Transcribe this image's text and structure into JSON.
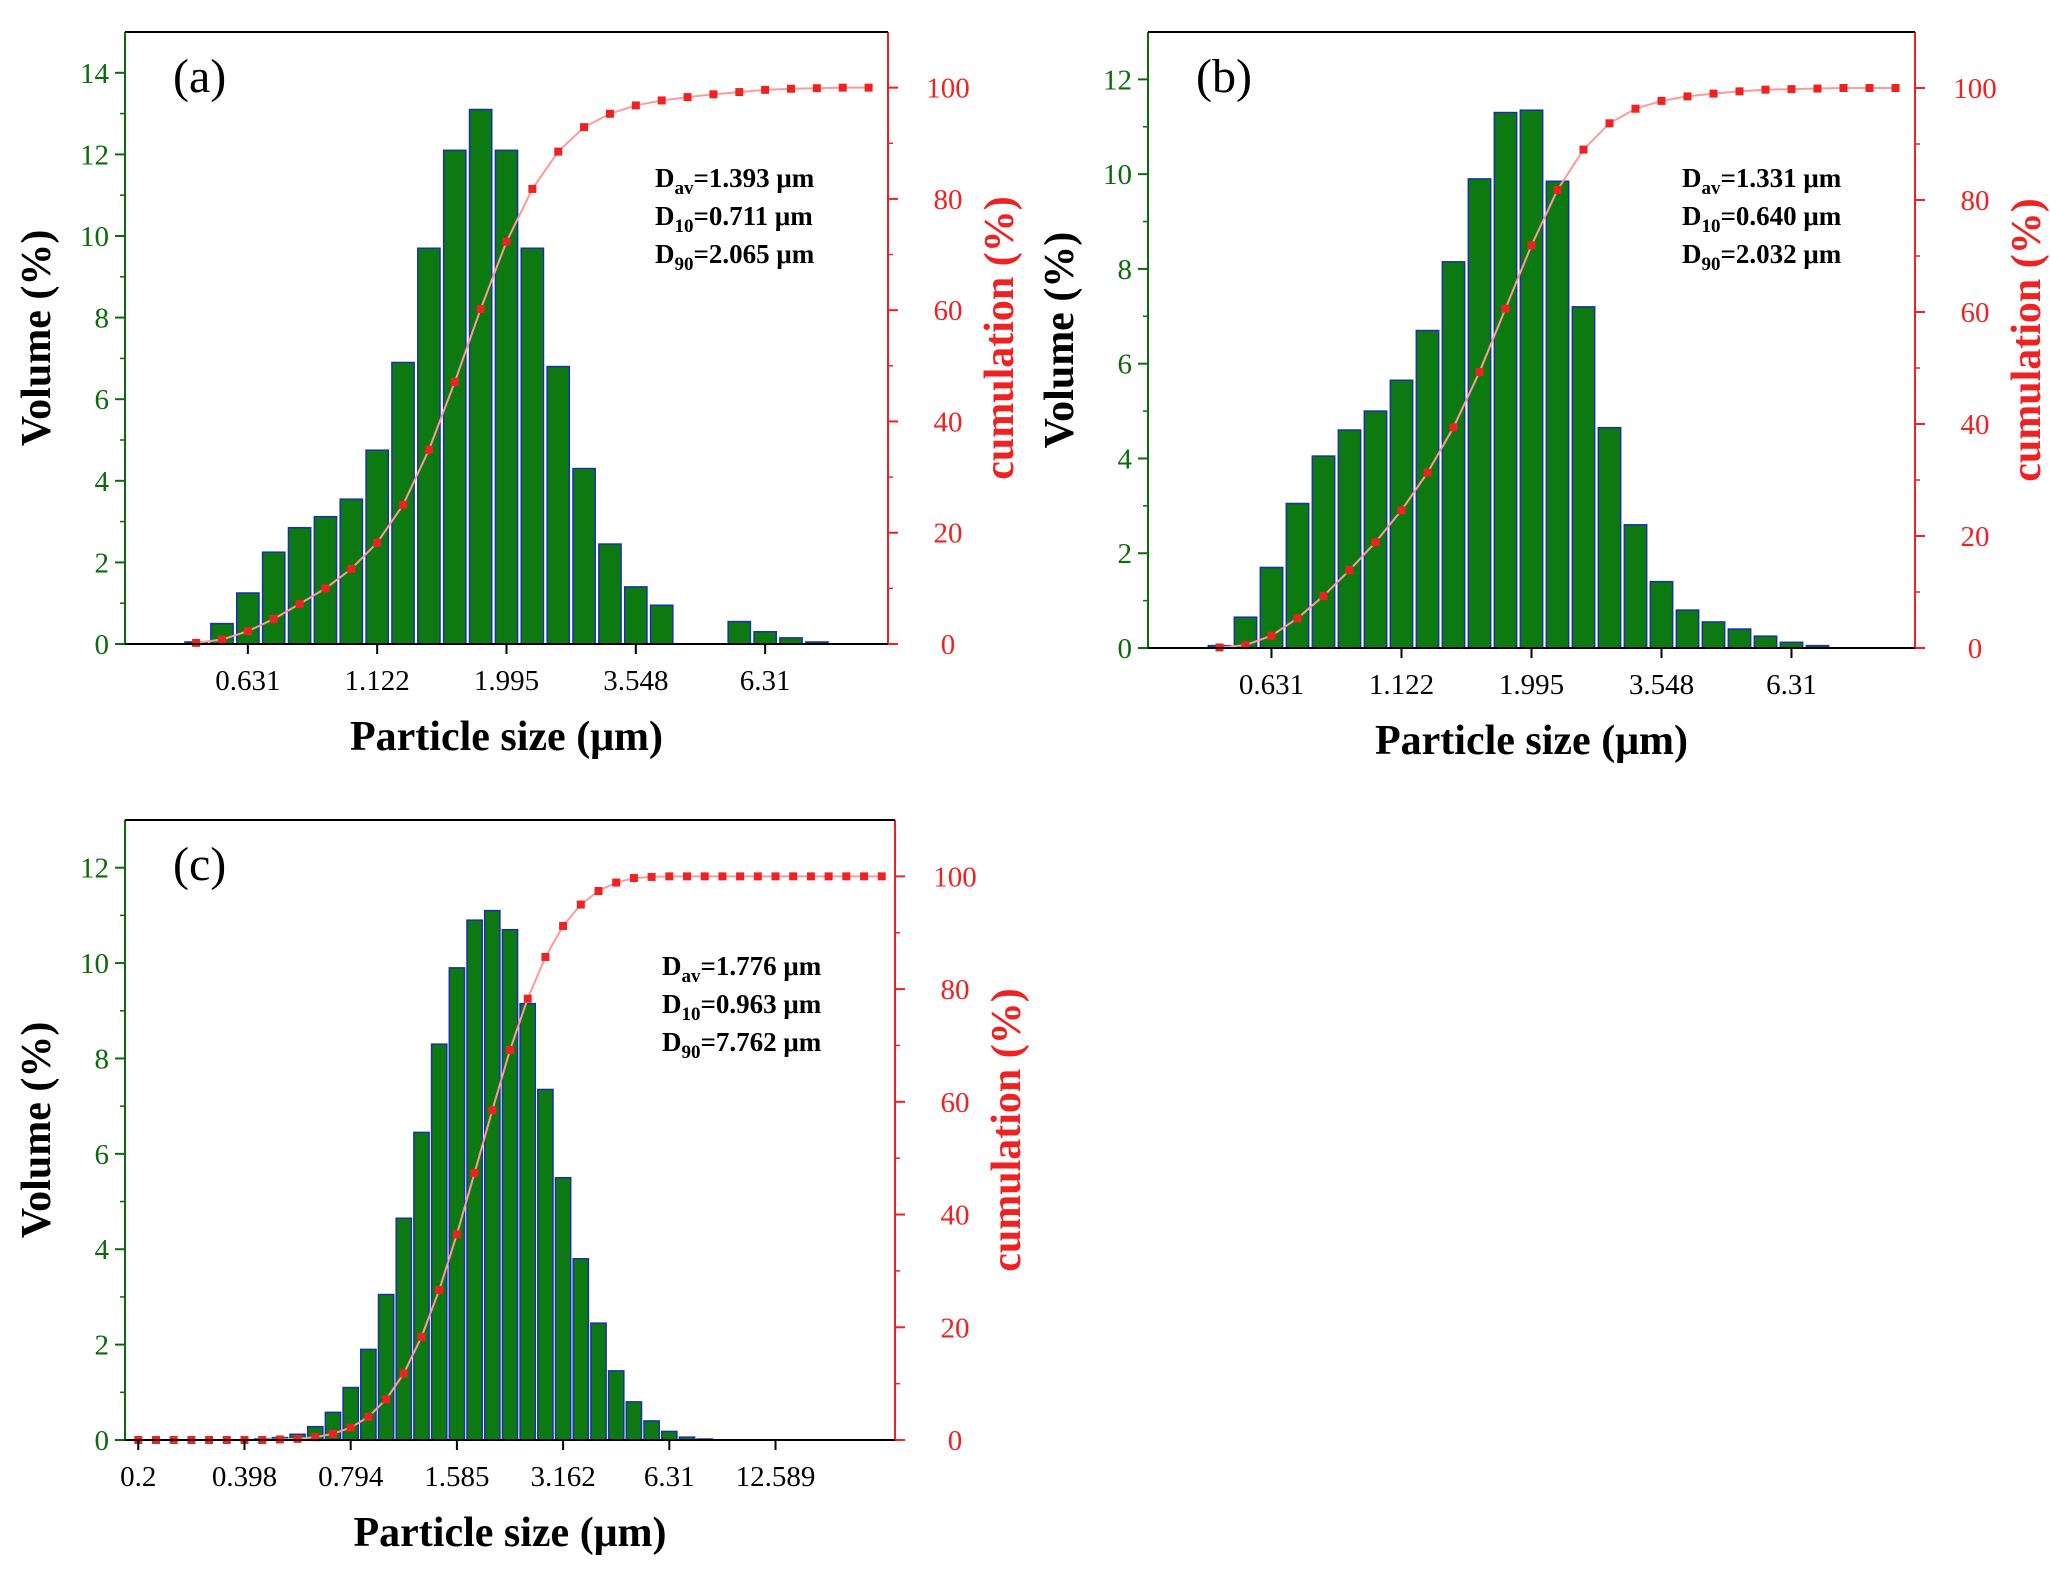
{
  "colors": {
    "bar_fill": "#0c7a10",
    "bar_stroke": "#1a2fae",
    "left_axis_text": "#0b6b0b",
    "cumulative": "#ee2222",
    "cumulative_line": "#ff9a9a"
  },
  "chart_data": [
    {
      "type": "bar",
      "panel": "(a)",
      "xlabel": "Particle size (μm)",
      "ylabel": "Volume (%)",
      "ylabel_right": "cumulation (%)",
      "ylim": [
        0,
        15
      ],
      "ylim_right": [
        0,
        110
      ],
      "yticks": [
        0,
        2,
        4,
        6,
        8,
        10,
        12,
        14
      ],
      "yticks_right": [
        0,
        20,
        40,
        60,
        80,
        100
      ],
      "xticks": [
        {
          "label": "0.631",
          "bin": 4.5
        },
        {
          "label": "1.122",
          "bin": 9.5
        },
        {
          "label": "1.995",
          "bin": 14.5
        },
        {
          "label": "3.548",
          "bin": 19.5
        },
        {
          "label": "6.31",
          "bin": 24.5
        }
      ],
      "n_bins": 29,
      "values": [
        0,
        0,
        0.05,
        0.5,
        1.25,
        2.25,
        2.85,
        3.12,
        3.55,
        4.75,
        6.9,
        9.7,
        12.1,
        13.1,
        12.1,
        9.7,
        6.8,
        4.3,
        2.45,
        1.4,
        0.95,
        0,
        0,
        0.55,
        0.3,
        0.15,
        0.05,
        0,
        0
      ],
      "cumulative_bins": [
        2,
        3,
        4,
        5,
        6,
        7,
        8,
        9,
        10,
        11,
        12,
        13,
        14,
        15,
        16,
        17,
        18,
        19,
        20,
        21,
        22,
        23,
        24,
        25,
        26,
        27,
        28
      ],
      "cumulative": [
        0.2,
        0.8,
        2.3,
        4.5,
        7.2,
        10.0,
        13.5,
        18.2,
        25.0,
        34.9,
        47.1,
        60.2,
        72.3,
        81.8,
        88.5,
        92.9,
        95.3,
        96.8,
        97.7,
        98.3,
        98.8,
        99.2,
        99.6,
        99.8,
        99.9,
        100.0,
        100.0
      ],
      "annotations": [
        {
          "main": "D",
          "sub": "av",
          "value": "=1.393 μm"
        },
        {
          "main": "D",
          "sub": "10",
          "value": "=0.711 μm"
        },
        {
          "main": "D",
          "sub": "90",
          "value": "=2.065 μm"
        }
      ]
    },
    {
      "type": "bar",
      "panel": "(b)",
      "xlabel": "Particle size (μm)",
      "ylabel": "Volume (%)",
      "ylabel_right": "cumulation (%)",
      "ylim": [
        0,
        13
      ],
      "ylim_right": [
        0,
        110
      ],
      "yticks": [
        0,
        2,
        4,
        6,
        8,
        10,
        12
      ],
      "yticks_right": [
        0,
        20,
        40,
        60,
        80,
        100
      ],
      "xticks": [
        {
          "label": "0.631",
          "bin": 4.5
        },
        {
          "label": "1.122",
          "bin": 9.5
        },
        {
          "label": "1.995",
          "bin": 14.5
        },
        {
          "label": "3.548",
          "bin": 19.5
        },
        {
          "label": "6.31",
          "bin": 24.5
        }
      ],
      "n_bins": 29,
      "values": [
        0,
        0,
        0.05,
        0.65,
        1.7,
        3.05,
        4.05,
        4.6,
        5.0,
        5.65,
        6.7,
        8.15,
        9.9,
        11.3,
        11.35,
        9.85,
        7.2,
        4.65,
        2.6,
        1.4,
        0.8,
        0.55,
        0.4,
        0.25,
        0.12,
        0.05,
        0,
        0,
        0
      ],
      "cumulative_bins": [
        2,
        3,
        4,
        5,
        6,
        7,
        8,
        9,
        10,
        11,
        12,
        13,
        14,
        15,
        16,
        17,
        18,
        19,
        20,
        21,
        22,
        23,
        24,
        25,
        26,
        27,
        28
      ],
      "cumulative": [
        0.1,
        0.5,
        2.2,
        5.3,
        9.3,
        13.9,
        18.9,
        24.6,
        31.3,
        39.4,
        49.3,
        60.6,
        71.9,
        81.8,
        89.0,
        93.7,
        96.3,
        97.7,
        98.5,
        99.0,
        99.4,
        99.7,
        99.8,
        99.9,
        100.0,
        100.0,
        100.0
      ],
      "annotations": [
        {
          "main": "D",
          "sub": "av",
          "value": "=1.331 μm"
        },
        {
          "main": "D",
          "sub": "10",
          "value": "=0.640 μm"
        },
        {
          "main": "D",
          "sub": "90",
          "value": "=2.032 μm"
        }
      ]
    },
    {
      "type": "bar",
      "panel": "(c)",
      "xlabel": "Particle size (μm)",
      "ylabel": "Volume (%)",
      "ylabel_right": "cumulation (%)",
      "ylim": [
        0,
        13
      ],
      "ylim_right": [
        0,
        110
      ],
      "yticks": [
        0,
        2,
        4,
        6,
        8,
        10,
        12
      ],
      "yticks_right": [
        0,
        20,
        40,
        60,
        80,
        100
      ],
      "xticks": [
        {
          "label": "0.2",
          "bin": 0.5
        },
        {
          "label": "0.398",
          "bin": 6.5
        },
        {
          "label": "0.794",
          "bin": 12.5
        },
        {
          "label": "1.585",
          "bin": 18.5
        },
        {
          "label": "3.162",
          "bin": 24.5
        },
        {
          "label": "6.31",
          "bin": 30.5
        },
        {
          "label": "12.589",
          "bin": 36.5
        }
      ],
      "n_bins": 43,
      "values": [
        0,
        0,
        0,
        0,
        0,
        0,
        0,
        0.02,
        0.05,
        0.12,
        0.28,
        0.58,
        1.1,
        1.9,
        3.05,
        4.65,
        6.45,
        8.3,
        9.9,
        10.9,
        11.1,
        10.7,
        9.15,
        7.35,
        5.5,
        3.8,
        2.45,
        1.45,
        0.8,
        0.4,
        0.18,
        0.06,
        0.02,
        0,
        0,
        0,
        0,
        0,
        0,
        0,
        0,
        0,
        0
      ],
      "cumulative_bins": [
        0,
        1,
        2,
        3,
        4,
        5,
        6,
        7,
        8,
        9,
        10,
        11,
        12,
        13,
        14,
        15,
        16,
        17,
        18,
        19,
        20,
        21,
        22,
        23,
        24,
        25,
        26,
        27,
        28,
        29,
        30,
        31,
        32,
        33,
        34,
        35,
        36,
        37,
        38,
        39,
        40,
        41,
        42
      ],
      "cumulative": [
        0,
        0,
        0,
        0,
        0,
        0,
        0,
        0,
        0.1,
        0.2,
        0.5,
        1.1,
        2.2,
        4.1,
        7.2,
        11.8,
        18.3,
        26.6,
        36.5,
        47.4,
        58.5,
        69.2,
        78.3,
        85.7,
        91.2,
        95.0,
        97.4,
        98.9,
        99.7,
        99.9,
        100,
        100,
        100,
        100,
        100,
        100,
        100,
        100,
        100,
        100,
        100,
        100,
        100
      ],
      "annotations": [
        {
          "main": "D",
          "sub": "av",
          "value": "=1.776 μm"
        },
        {
          "main": "D",
          "sub": "10",
          "value": "=0.963 μm"
        },
        {
          "main": "D",
          "sub": "90",
          "value": "=7.762 μm"
        }
      ]
    }
  ]
}
